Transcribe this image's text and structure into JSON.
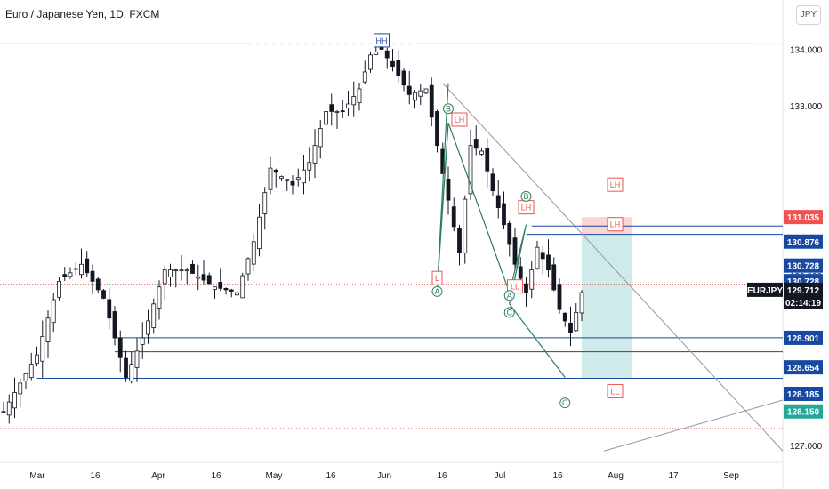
{
  "header": {
    "title": "Euro / Japanese Yen, 1D, FXCM",
    "currency": "JPY"
  },
  "colors": {
    "up": "#26a69a",
    "down": "#ef5350",
    "candle": "#131722",
    "hline": "#1848a0",
    "pattern": "#2e7d5b"
  },
  "chart_data": {
    "type": "candlestick",
    "title": "Euro / Japanese Yen, 1D, FXCM",
    "yticks": [
      "134.000",
      "133.000",
      "130.000",
      "127.000"
    ],
    "ylim": [
      126.7,
      134.4
    ],
    "xticks": [
      "Mar",
      "16",
      "Apr",
      "16",
      "May",
      "16",
      "Jun",
      "16",
      "Jul",
      "16",
      "Aug",
      "17",
      "Sep"
    ],
    "symbol": "EURJPY",
    "last_price": "129.712",
    "countdown": "02:14:19",
    "price_tags": [
      {
        "label": "131.035",
        "value": 131.035,
        "color": "#ef5350"
      },
      {
        "label": "130.876",
        "value": 130.876,
        "color": "#1848a0"
      },
      {
        "label": "130.728",
        "value": 130.728,
        "color": "#1848a0"
      },
      {
        "label": "130.728",
        "value": 130.728,
        "color": "#1848a0"
      },
      {
        "label": "130.728",
        "value": 130.728,
        "color": "#555555"
      },
      {
        "label": "128.901",
        "value": 128.901,
        "color": "#1848a0"
      },
      {
        "label": "128.654",
        "value": 128.654,
        "color": "#1848a0"
      },
      {
        "label": "128.185",
        "value": 128.185,
        "color": "#1848a0"
      },
      {
        "label": "128.150",
        "value": 128.15,
        "color": "#26a69a"
      }
    ],
    "hlines": [
      {
        "value": 128.901,
        "from_day": 20
      },
      {
        "value": 128.654,
        "from_day": 20
      },
      {
        "value": 128.185,
        "from_day": 6
      },
      {
        "value": 130.728,
        "from_day": 94
      },
      {
        "value": 130.876,
        "from_day": 95
      }
    ],
    "labels": [
      {
        "text": "HH",
        "day": 68,
        "value": 134.15,
        "kind": "hh"
      },
      {
        "text": "LH",
        "day": 82,
        "value": 132.75,
        "kind": "lh"
      },
      {
        "text": "LH",
        "day": 94,
        "value": 131.2,
        "kind": "lh"
      },
      {
        "text": "LH",
        "day": 110,
        "value": 131.6,
        "kind": "lh"
      },
      {
        "text": "LH",
        "day": 110,
        "value": 130.9,
        "kind": "lh"
      },
      {
        "text": "L",
        "day": 78,
        "value": 129.95,
        "kind": "lh"
      },
      {
        "text": "LL",
        "day": 92,
        "value": 129.8,
        "kind": "lh"
      },
      {
        "text": "LL",
        "day": 110,
        "value": 127.95,
        "kind": "lh"
      },
      {
        "text": "B",
        "day": 80,
        "value": 132.95,
        "kind": "pt"
      },
      {
        "text": "B",
        "day": 94,
        "value": 131.4,
        "kind": "pt"
      },
      {
        "text": "A",
        "day": 78,
        "value": 129.72,
        "kind": "pt"
      },
      {
        "text": "A",
        "day": 91,
        "value": 129.65,
        "kind": "pt"
      },
      {
        "text": "C",
        "day": 91,
        "value": 129.35,
        "kind": "pt"
      },
      {
        "text": "C",
        "day": 101,
        "value": 127.75,
        "kind": "pt"
      }
    ]
  }
}
